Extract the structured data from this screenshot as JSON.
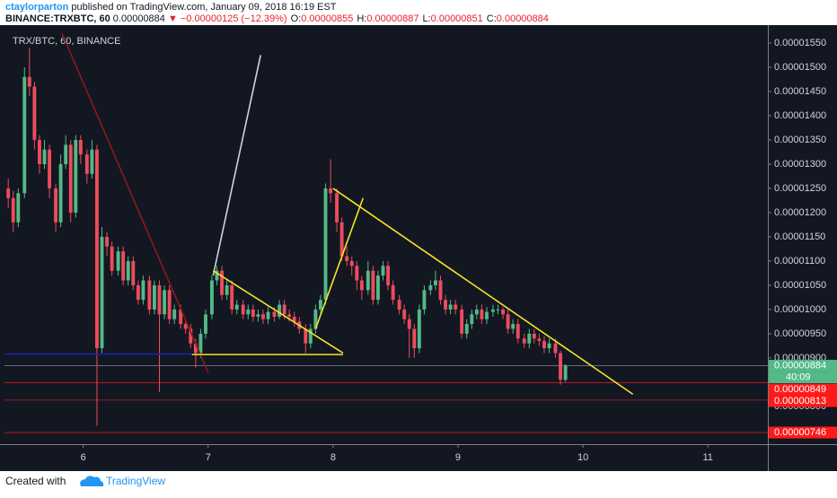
{
  "header": {
    "author": "ctaylorparton",
    "published": "published on TradingView.com, January 09, 2018 16:19 EST",
    "symbol": "BINANCE:TRXBTC, 60",
    "last": "0.00000884",
    "change": "▼ −0.00000125 (−12.39%)",
    "ohlc": [
      {
        "label": "O:",
        "value": "0.00000855"
      },
      {
        "label": "H:",
        "value": "0.00000887"
      },
      {
        "label": "L:",
        "value": "0.00000851"
      },
      {
        "label": "C:",
        "value": "0.00000884"
      }
    ]
  },
  "footer": {
    "created": "Created with",
    "brand": "TradingView"
  },
  "chart_data": {
    "type": "candlestick",
    "title": "TRX/BTC, 60, BINANCE",
    "up_color": "#53b987",
    "down_color": "#eb4d5c",
    "x": [
      5.4,
      5.44,
      5.48,
      5.53,
      5.57,
      5.61,
      5.65,
      5.69,
      5.73,
      5.78,
      5.82,
      5.86,
      5.9,
      5.94,
      5.98,
      6.03,
      6.07,
      6.11,
      6.15,
      6.19,
      6.23,
      6.28,
      6.32,
      6.36,
      6.4,
      6.44,
      6.48,
      6.53,
      6.57,
      6.61,
      6.65,
      6.69,
      6.73,
      6.78,
      6.82,
      6.86,
      6.9,
      6.94,
      6.98,
      7.03,
      7.07,
      7.11,
      7.15,
      7.19,
      7.23,
      7.28,
      7.32,
      7.36,
      7.4,
      7.44,
      7.48,
      7.53,
      7.57,
      7.61,
      7.65,
      7.69,
      7.73,
      7.78,
      7.82,
      7.86,
      7.9,
      7.94,
      7.98,
      8.03,
      8.07,
      8.11,
      8.15,
      8.19,
      8.23,
      8.28,
      8.32,
      8.36,
      8.4,
      8.44,
      8.48,
      8.53,
      8.57,
      8.61,
      8.65,
      8.69,
      8.73,
      8.78,
      8.82,
      8.86,
      8.9,
      8.94,
      8.98,
      9.03,
      9.07,
      9.11,
      9.15,
      9.19,
      9.23,
      9.28,
      9.32,
      9.36,
      9.4,
      9.44,
      9.48,
      9.53,
      9.57,
      9.61,
      9.65,
      9.69,
      9.73,
      9.78,
      9.82,
      9.86
    ],
    "open": [
      1.25e-05,
      1.23e-05,
      1.18e-05,
      1.24e-05,
      1.48e-05,
      1.46e-05,
      1.35e-05,
      1.3e-05,
      1.33e-05,
      1.25e-05,
      1.18e-05,
      1.3e-05,
      1.34e-05,
      1.2e-05,
      1.35e-05,
      1.32e-05,
      1.28e-05,
      1.33e-05,
      9.2e-06,
      1.15e-05,
      1.13e-05,
      1.08e-05,
      1.12e-05,
      1.06e-05,
      1.1e-05,
      1.05e-05,
      1.02e-05,
      1.06e-05,
      1e-05,
      1.05e-05,
      9.9e-06,
      1.04e-05,
      9.8e-06,
      1e-05,
      9.7e-06,
      9.6e-06,
      9.3e-06,
      9.1e-06,
      9.5e-06,
      9.9e-06,
      1.06e-05,
      1.08e-05,
      1.03e-05,
      1.05e-05,
      1e-05,
      1.01e-05,
      9.9e-06,
      1e-05,
      9.85e-06,
      9.9e-06,
      9.8e-06,
      9.95e-06,
      9.85e-06,
      1.01e-05,
      9.9e-06,
      9.85e-06,
      9.75e-06,
      9.6e-06,
      9.3e-06,
      9.6e-06,
      1e-05,
      1.02e-05,
      1.25e-05,
      1.24e-05,
      1.18e-05,
      1.11e-05,
      1.1e-05,
      1.09e-05,
      1.06e-05,
      1.04e-05,
      1.08e-05,
      1.02e-05,
      1.07e-05,
      1.09e-05,
      1.05e-05,
      1.02e-05,
      1e-05,
      9.8e-06,
      9.6e-06,
      9.2e-06,
      1e-05,
      1.04e-05,
      1.05e-05,
      1.06e-05,
      1.02e-05,
      1e-05,
      1.01e-05,
      1e-05,
      9.5e-06,
      9.7e-06,
      9.9e-06,
      1e-05,
      9.8e-06,
      9.95e-06,
      1e-05,
      1e-05,
      9.9e-06,
      9.6e-06,
      9.7e-06,
      9.4e-06,
      9.3e-06,
      9.5e-06,
      9.4e-06,
      9.35e-06,
      9.2e-06,
      9.3e-06,
      9.1e-06,
      8.55e-06
    ],
    "high": [
      1.27e-05,
      1.245e-05,
      1.25e-05,
      1.5e-05,
      1.54e-05,
      1.47e-05,
      1.36e-05,
      1.35e-05,
      1.34e-05,
      1.26e-05,
      1.32e-05,
      1.36e-05,
      1.35e-05,
      1.36e-05,
      1.36e-05,
      1.33e-05,
      1.35e-05,
      1.34e-05,
      1.17e-05,
      1.16e-05,
      1.14e-05,
      1.13e-05,
      1.13e-05,
      1.11e-05,
      1.11e-05,
      1.06e-05,
      1.07e-05,
      1.07e-05,
      1.06e-05,
      1.06e-05,
      1.05e-05,
      1.05e-05,
      1.01e-05,
      1.01e-05,
      9.8e-06,
      9.7e-06,
      9.4e-06,
      9.6e-06,
      1e-05,
      1.07e-05,
      1.09e-05,
      1.09e-05,
      1.06e-05,
      1.06e-05,
      1.02e-05,
      1.02e-05,
      1.01e-05,
      1.01e-05,
      1e-05,
      1e-05,
      1.005e-05,
      1.005e-05,
      1.02e-05,
      1.02e-05,
      1e-05,
      9.95e-06,
      9.85e-06,
      9.7e-06,
      9.7e-06,
      1.01e-05,
      1.03e-05,
      1.26e-05,
      1.31e-05,
      1.25e-05,
      1.19e-05,
      1.13e-05,
      1.11e-05,
      1.1e-05,
      1.07e-05,
      1.1e-05,
      1.09e-05,
      1.08e-05,
      1.1e-05,
      1.1e-05,
      1.06e-05,
      1.03e-05,
      1.01e-05,
      9.9e-06,
      9.7e-06,
      1.01e-05,
      1.05e-05,
      1.06e-05,
      1.08e-05,
      1.07e-05,
      1.03e-05,
      1.02e-05,
      1.02e-05,
      1.01e-05,
      9.8e-06,
      1e-05,
      1.01e-05,
      1.01e-05,
      1.005e-05,
      1.01e-05,
      1.01e-05,
      1.005e-05,
      1e-05,
      9.8e-06,
      9.8e-06,
      9.5e-06,
      9.6e-06,
      9.6e-06,
      9.5e-06,
      9.45e-06,
      9.4e-06,
      9.4e-06,
      9.15e-06,
      8.87e-06
    ],
    "low": [
      1.21e-05,
      1.16e-05,
      1.17e-05,
      1.23e-05,
      1.44e-05,
      1.33e-05,
      1.28e-05,
      1.29e-05,
      1.23e-05,
      1.16e-05,
      1.17e-05,
      1.29e-05,
      1.18e-05,
      1.19e-05,
      1.3e-05,
      1.26e-05,
      1.27e-05,
      7.6e-06,
      9.1e-06,
      1.11e-05,
      1.07e-05,
      1.07e-05,
      1.05e-05,
      1.05e-05,
      1.04e-05,
      1.01e-05,
      1.01e-05,
      9.9e-06,
      9.9e-06,
      8.3e-06,
      9.8e-06,
      9.7e-06,
      9.7e-06,
      9.6e-06,
      9.5e-06,
      9.2e-06,
      8.8e-06,
      9e-06,
      9.4e-06,
      9.8e-06,
      1.05e-05,
      1.02e-05,
      1.02e-05,
      9.9e-06,
      9.9e-06,
      9.8e-06,
      9.8e-06,
      9.75e-06,
      9.75e-06,
      9.7e-06,
      9.7e-06,
      9.75e-06,
      9.8e-06,
      9.8e-06,
      9.75e-06,
      9.65e-06,
      9.5e-06,
      9.1e-06,
      9.2e-06,
      9.5e-06,
      9.9e-06,
      1.01e-05,
      1.22e-05,
      1.16e-05,
      1.1e-05,
      1.09e-05,
      1.07e-05,
      1.04e-05,
      1.02e-05,
      1.03e-05,
      1.01e-05,
      1.01e-05,
      1.06e-05,
      1.04e-05,
      1.01e-05,
      9.9e-06,
      9.7e-06,
      9e-06,
      9e-06,
      9.1e-06,
      9.9e-06,
      1.03e-05,
      1.04e-05,
      1.01e-05,
      9.9e-06,
      9.9e-06,
      9.9e-06,
      9.4e-06,
      9.4e-06,
      9.6e-06,
      9.8e-06,
      9.7e-06,
      9.7e-06,
      9.85e-06,
      9.9e-06,
      9.8e-06,
      9.5e-06,
      9.5e-06,
      9.3e-06,
      9.2e-06,
      9.2e-06,
      9.3e-06,
      9.25e-06,
      9.1e-06,
      9.1e-06,
      9e-06,
      8.45e-06,
      8.51e-06
    ],
    "close": [
      1.23e-05,
      1.18e-05,
      1.24e-05,
      1.48e-05,
      1.46e-05,
      1.35e-05,
      1.3e-05,
      1.33e-05,
      1.25e-05,
      1.18e-05,
      1.3e-05,
      1.34e-05,
      1.2e-05,
      1.35e-05,
      1.32e-05,
      1.28e-05,
      1.33e-05,
      9.2e-06,
      1.15e-05,
      1.13e-05,
      1.08e-05,
      1.12e-05,
      1.06e-05,
      1.1e-05,
      1.05e-05,
      1.02e-05,
      1.06e-05,
      1e-05,
      1.05e-05,
      9.9e-06,
      1.04e-05,
      9.8e-06,
      1e-05,
      9.7e-06,
      9.6e-06,
      9.3e-06,
      9.1e-06,
      9.5e-06,
      9.9e-06,
      1.06e-05,
      1.08e-05,
      1.03e-05,
      1.05e-05,
      1e-05,
      1.01e-05,
      9.9e-06,
      1e-05,
      9.85e-06,
      9.9e-06,
      9.8e-06,
      9.95e-06,
      9.85e-06,
      1.01e-05,
      9.9e-06,
      9.85e-06,
      9.75e-06,
      9.6e-06,
      9.3e-06,
      9.6e-06,
      1e-05,
      1.02e-05,
      1.25e-05,
      1.24e-05,
      1.18e-05,
      1.11e-05,
      1.1e-05,
      1.09e-05,
      1.06e-05,
      1.04e-05,
      1.08e-05,
      1.02e-05,
      1.07e-05,
      1.09e-05,
      1.05e-05,
      1.02e-05,
      1e-05,
      9.8e-06,
      9.6e-06,
      9.2e-06,
      1e-05,
      1.04e-05,
      1.05e-05,
      1.06e-05,
      1.02e-05,
      1e-05,
      1.01e-05,
      1e-05,
      9.5e-06,
      9.7e-06,
      9.9e-06,
      1e-05,
      9.8e-06,
      9.95e-06,
      1e-05,
      1e-05,
      9.9e-06,
      9.6e-06,
      9.7e-06,
      9.4e-06,
      9.3e-06,
      9.5e-06,
      9.4e-06,
      9.35e-06,
      9.2e-06,
      9.3e-06,
      9.1e-06,
      8.55e-06,
      8.84e-06
    ],
    "xlim": [
      5.37,
      11.48
    ],
    "xticks": [
      6,
      7,
      8,
      9,
      10,
      11
    ],
    "ylim": [
      7.22e-06,
      1.587e-05
    ],
    "yticks": [
      {
        "value": 1.55e-05,
        "label": "0.00001550"
      },
      {
        "value": 1.5e-05,
        "label": "0.00001500"
      },
      {
        "value": 1.45e-05,
        "label": "0.00001450"
      },
      {
        "value": 1.4e-05,
        "label": "0.00001400"
      },
      {
        "value": 1.35e-05,
        "label": "0.00001350"
      },
      {
        "value": 1.3e-05,
        "label": "0.00001300"
      },
      {
        "value": 1.25e-05,
        "label": "0.00001250"
      },
      {
        "value": 1.2e-05,
        "label": "0.00001200"
      },
      {
        "value": 1.15e-05,
        "label": "0.00001150"
      },
      {
        "value": 1.1e-05,
        "label": "0.00001100"
      },
      {
        "value": 1.05e-05,
        "label": "0.00001050"
      },
      {
        "value": 1e-05,
        "label": "0.00001000"
      },
      {
        "value": 9.5e-06,
        "label": "0.00000950"
      },
      {
        "value": 9e-06,
        "label": "0.00000900"
      },
      {
        "value": 8e-06,
        "label": "0.00000800"
      }
    ],
    "grid": false,
    "last_price": {
      "value": 8.84e-06,
      "label": "0.00000884",
      "color": "#53b987",
      "countdown": "40:09"
    },
    "price_lines": [
      {
        "value": 8.49e-06,
        "label": "0.00000849",
        "color": "#ff1a1a"
      },
      {
        "value": 8.13e-06,
        "label": "0.00000813",
        "color": "#ff1a1a"
      },
      {
        "value": 7.46e-06,
        "label": "0.00000746",
        "color": "#ff1a1a"
      }
    ],
    "trendlines": [
      {
        "color": "#8b1a1a",
        "points": [
          [
            5.83,
            1.57e-05
          ],
          [
            7.0,
            8.7e-06
          ]
        ]
      },
      {
        "color": "#d1d4dc",
        "points": [
          [
            7.04,
            1.07e-05
          ],
          [
            7.42,
            1.525e-05
          ]
        ]
      },
      {
        "color": "#1e22aa",
        "points": [
          [
            5.37,
            9.08e-06
          ],
          [
            6.87,
            9.08e-06
          ]
        ]
      },
      {
        "color": "#f5e625",
        "points": [
          [
            7.04,
            1.08e-05
          ],
          [
            8.08,
            9.1e-06
          ]
        ]
      },
      {
        "color": "#f5e625",
        "points": [
          [
            6.87,
            9.07e-06
          ],
          [
            8.08,
            9.07e-06
          ]
        ]
      },
      {
        "color": "#f5e625",
        "points": [
          [
            7.86,
            9.6e-06
          ],
          [
            8.24,
            1.23e-05
          ]
        ]
      },
      {
        "color": "#f5e625",
        "points": [
          [
            8.0,
            1.25e-05
          ],
          [
            10.4,
            8.25e-06
          ]
        ]
      }
    ]
  }
}
